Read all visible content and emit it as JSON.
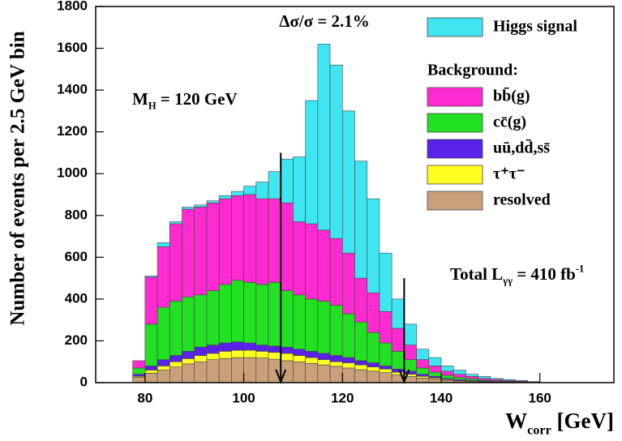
{
  "chart_data": {
    "type": "stacked_histogram",
    "ylabel": "Number of events per 2.5 GeV bin",
    "xlabel": {
      "main": "W",
      "sub": "corr",
      "rest": " [GeV]"
    },
    "annotations": {
      "resolution": "Δσ/σ = 2.1%",
      "mass": {
        "main": "M",
        "sub": "H",
        "rest": " = 120 GeV"
      },
      "luminosity": {
        "main": "Total L",
        "sub": "γγ",
        "rest": " = 410 fb",
        "sup": "-1"
      }
    },
    "legend_heading": "Background:",
    "bins": [
      77.5,
      80,
      82.5,
      85,
      87.5,
      90,
      92.5,
      95,
      97.5,
      100,
      102.5,
      105,
      107.5,
      110,
      112.5,
      115,
      117.5,
      120,
      122.5,
      125,
      127.5,
      130,
      132.5,
      135,
      137.5,
      140,
      142.5,
      145,
      147.5,
      150,
      152.5,
      155,
      157.5,
      160
    ],
    "series": [
      {
        "name": "resolved",
        "color": "#c9a07a",
        "values": [
          25,
          45,
          60,
          75,
          90,
          100,
          110,
          115,
          120,
          120,
          118,
          112,
          105,
          100,
          92,
          85,
          78,
          70,
          62,
          55,
          48,
          38,
          30,
          22,
          16,
          11,
          8,
          6,
          4,
          3,
          2,
          1,
          1
        ]
      },
      {
        "name": "τ⁺τ⁻",
        "color": "#ffff22",
        "values": [
          5,
          15,
          20,
          25,
          25,
          30,
          30,
          35,
          35,
          35,
          32,
          33,
          35,
          30,
          28,
          25,
          22,
          25,
          23,
          20,
          17,
          12,
          10,
          8,
          6,
          4,
          2,
          2,
          2,
          1,
          1,
          1,
          0
        ]
      },
      {
        "name": "uū,dd̄,ss̄",
        "color": "#5a22e8",
        "values": [
          10,
          20,
          30,
          30,
          35,
          40,
          40,
          40,
          40,
          35,
          30,
          30,
          30,
          30,
          30,
          30,
          30,
          25,
          20,
          20,
          15,
          15,
          15,
          10,
          8,
          5,
          5,
          2,
          2,
          1,
          1,
          1,
          0
        ]
      },
      {
        "name": "cc̄(g)",
        "color": "#22e022",
        "values": [
          30,
          200,
          250,
          260,
          260,
          250,
          260,
          280,
          295,
          290,
          290,
          305,
          270,
          260,
          250,
          250,
          240,
          210,
          185,
          145,
          110,
          85,
          55,
          30,
          20,
          15,
          10,
          8,
          4,
          3,
          2,
          1,
          1
        ]
      },
      {
        "name": "bb̄(g)",
        "color": "#ff2bd0",
        "values": [
          35,
          225,
          290,
          370,
          420,
          420,
          420,
          410,
          405,
          420,
          410,
          400,
          420,
          350,
          360,
          340,
          320,
          290,
          210,
          190,
          150,
          110,
          70,
          40,
          30,
          20,
          15,
          12,
          8,
          7,
          4,
          3,
          2
        ]
      },
      {
        "name": "Higgs signal",
        "color": "#3fe6f2",
        "values": [
          0,
          5,
          20,
          10,
          10,
          10,
          10,
          15,
          20,
          40,
          80,
          130,
          210,
          310,
          590,
          890,
          830,
          680,
          560,
          450,
          280,
          140,
          100,
          50,
          40,
          25,
          20,
          10,
          10,
          5,
          5,
          3,
          1
        ]
      }
    ],
    "cut_arrows": [
      {
        "x": 107.5,
        "from": 1100,
        "to": 0
      },
      {
        "x": 132.5,
        "from": 500,
        "to": 0
      }
    ],
    "xlim": [
      70,
      175
    ],
    "xticks": [
      80,
      100,
      120,
      140,
      160
    ],
    "ylim": [
      0,
      1800
    ],
    "yticks": [
      0,
      200,
      400,
      600,
      800,
      1000,
      1200,
      1400,
      1600,
      1800
    ]
  }
}
